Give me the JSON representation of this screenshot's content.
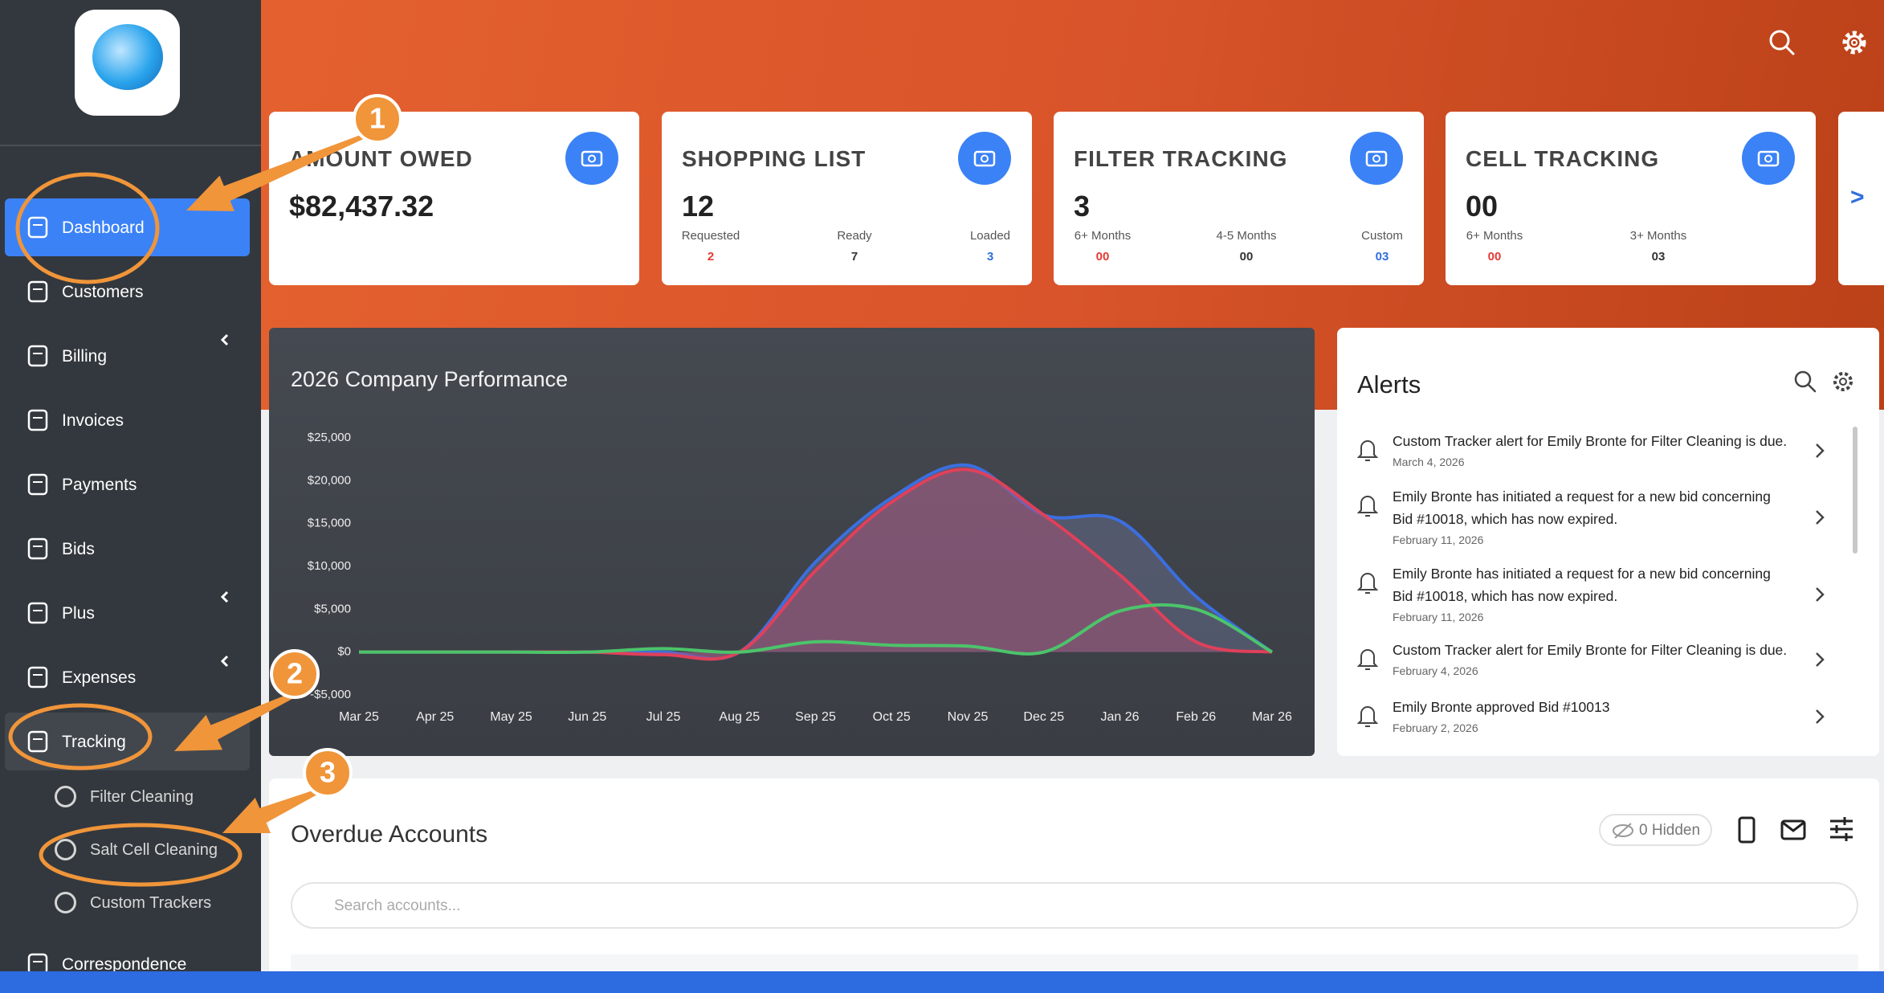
{
  "sidebar": {
    "nav": [
      {
        "label": "Dashboard",
        "active": true
      },
      {
        "label": "Customers"
      },
      {
        "label": "Billing",
        "submenu": true
      },
      {
        "label": "Invoices"
      },
      {
        "label": "Payments"
      },
      {
        "label": "Bids"
      },
      {
        "label": "Plus",
        "submenu": true
      },
      {
        "label": "Expenses",
        "submenu": true
      },
      {
        "label": "Tracking",
        "submenu": true,
        "open": true,
        "subitems": [
          "Filter Cleaning",
          "Salt Cell Cleaning",
          "Custom Trackers"
        ]
      },
      {
        "label": "Correspondence"
      }
    ]
  },
  "cards": [
    {
      "title": "AMOUNT OWED",
      "value": "$82,437.32"
    },
    {
      "title": "SHOPPING LIST",
      "value": "12",
      "stats": [
        {
          "label": "Requested",
          "value": "2",
          "color": "#e53935"
        },
        {
          "label": "Ready",
          "value": "7",
          "color": "#333333"
        },
        {
          "label": "Loaded",
          "value": "3",
          "color": "#2f6fdf"
        }
      ]
    },
    {
      "title": "FILTER TRACKING",
      "value": "3",
      "stats": [
        {
          "label": "6+ Months",
          "value": "00",
          "color": "#e53935"
        },
        {
          "label": "4-5 Months",
          "value": "00",
          "color": "#333333"
        },
        {
          "label": "Custom",
          "value": "03",
          "color": "#2f6fdf"
        }
      ]
    },
    {
      "title": "CELL TRACKING",
      "value": "00",
      "stats": [
        {
          "label": "6+ Months",
          "value": "00",
          "color": "#e53935"
        },
        {
          "label": "3+ Months",
          "value": "03",
          "color": "#333333"
        }
      ]
    }
  ],
  "cards_next": ">",
  "chart_data": {
    "type": "area",
    "title": "2026 Company Performance",
    "categories": [
      "Mar 25",
      "Apr 25",
      "May 25",
      "Jun 25",
      "Jul 25",
      "Aug 25",
      "Sep 25",
      "Oct 25",
      "Nov 25",
      "Dec 25",
      "Jan 26",
      "Feb 26",
      "Mar 26"
    ],
    "series": [
      {
        "color": "#3b6fe0",
        "fill": "rgba(120,130,175,0.35)",
        "values": [
          0,
          0,
          0,
          0,
          0,
          0,
          10500,
          18000,
          21800,
          16000,
          15300,
          6500,
          0
        ]
      },
      {
        "color": "#e0405a",
        "fill": "rgba(190,80,120,0.40)",
        "values": [
          0,
          0,
          0,
          0,
          -300,
          0,
          9500,
          17500,
          21300,
          16000,
          9000,
          1200,
          0
        ]
      },
      {
        "color": "#4cc46a",
        "values": [
          0,
          0,
          0,
          0,
          400,
          0,
          1200,
          800,
          700,
          0,
          4800,
          5000,
          0
        ]
      }
    ],
    "ylim": [
      -5000,
      25000
    ],
    "yticks": [
      {
        "value": -5000,
        "label": "-$5,000"
      },
      {
        "value": 0,
        "label": "$0"
      },
      {
        "value": 5000,
        "label": "$5,000"
      },
      {
        "value": 10000,
        "label": "$10,000"
      },
      {
        "value": 15000,
        "label": "$15,000"
      },
      {
        "value": 20000,
        "label": "$20,000"
      },
      {
        "value": 25000,
        "label": "$25,000"
      }
    ],
    "grid": false
  },
  "alerts": {
    "title": "Alerts",
    "items": [
      {
        "text": "Custom Tracker alert for Emily Bronte for Filter Cleaning is due.",
        "date": "March 4, 2026"
      },
      {
        "text": "Emily Bronte has initiated a request for a new bid concerning Bid #10018, which has now expired.",
        "date": "February 11, 2026"
      },
      {
        "text": "Emily Bronte has initiated a request for a new bid concerning Bid #10018, which has now expired.",
        "date": "February 11, 2026"
      },
      {
        "text": "Custom Tracker alert for Emily Bronte for Filter Cleaning is due.",
        "date": "February 4, 2026"
      },
      {
        "text": "Emily Bronte approved Bid #10013",
        "date": "February 2, 2026"
      }
    ]
  },
  "overdue": {
    "title": "Overdue Accounts",
    "hidden": "0 Hidden",
    "search_placeholder": "Search accounts..."
  },
  "annotations": [
    "1",
    "2",
    "3"
  ]
}
